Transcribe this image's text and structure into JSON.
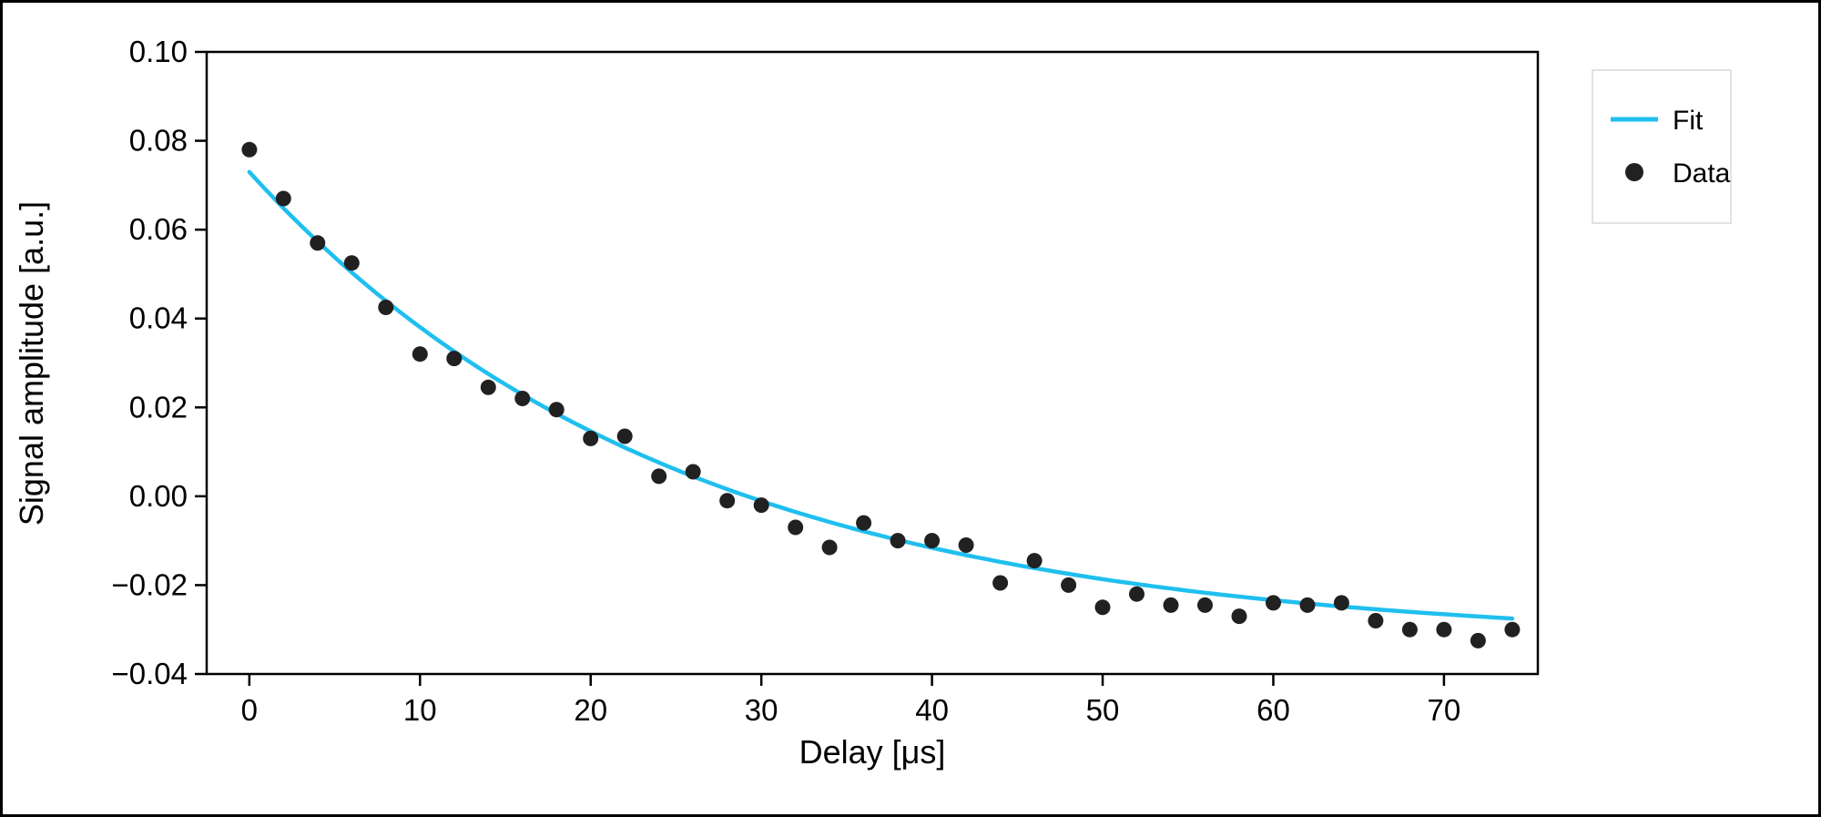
{
  "figure": {
    "xlabel": "Delay [μs]",
    "ylabel": "Signal amplitude [a.u.]"
  },
  "legend": {
    "fit_label": "Fit",
    "data_label": "Data"
  },
  "colors": {
    "fit_line": "#1fbfef",
    "data_points": "#212121",
    "axis": "#000000",
    "tick_text": "#000000",
    "legend_border": "#d9d9d9",
    "background": "#ffffff"
  },
  "chart_data": {
    "type": "scatter",
    "title": "",
    "xlabel": "Delay [μs]",
    "ylabel": "Signal amplitude [a.u.]",
    "xlim": [
      -2.5,
      75.5
    ],
    "ylim": [
      -0.04,
      0.1
    ],
    "grid": false,
    "legend_position": "outside-right-top",
    "xticks": [
      {
        "value": 0,
        "label": "0"
      },
      {
        "value": 10,
        "label": "10"
      },
      {
        "value": 20,
        "label": "20"
      },
      {
        "value": 30,
        "label": "30"
      },
      {
        "value": 40,
        "label": "40"
      },
      {
        "value": 50,
        "label": "50"
      },
      {
        "value": 60,
        "label": "60"
      },
      {
        "value": 70,
        "label": "70"
      }
    ],
    "yticks": [
      {
        "value": -0.04,
        "label": "−0.04"
      },
      {
        "value": -0.02,
        "label": "−0.02"
      },
      {
        "value": 0.0,
        "label": "0.00"
      },
      {
        "value": 0.02,
        "label": "0.02"
      },
      {
        "value": 0.04,
        "label": "0.04"
      },
      {
        "value": 0.06,
        "label": "0.06"
      },
      {
        "value": 0.08,
        "label": "0.08"
      },
      {
        "value": 0.1,
        "label": "0.10"
      }
    ],
    "series": [
      {
        "name": "Fit",
        "type": "line",
        "color": "#1fbfef",
        "model": "A * exp(-x/tau) + C",
        "fit": {
          "A": 0.106,
          "tau": 25.0,
          "C": -0.033,
          "x_start": 0,
          "x_end": 74
        }
      },
      {
        "name": "Data",
        "type": "scatter",
        "color": "#212121",
        "x": [
          0,
          2,
          4,
          6,
          8,
          10,
          12,
          14,
          16,
          18,
          20,
          22,
          24,
          26,
          28,
          30,
          32,
          34,
          36,
          38,
          40,
          42,
          44,
          46,
          48,
          50,
          52,
          54,
          56,
          58,
          60,
          62,
          64,
          66,
          68,
          70,
          72,
          74
        ],
        "y": [
          0.078,
          0.067,
          0.057,
          0.0525,
          0.0425,
          0.032,
          0.031,
          0.0245,
          0.022,
          0.0195,
          0.013,
          0.0135,
          0.0045,
          0.0055,
          -0.001,
          -0.002,
          -0.007,
          -0.0115,
          -0.006,
          -0.01,
          -0.01,
          -0.011,
          -0.0195,
          -0.0145,
          -0.02,
          -0.025,
          -0.022,
          -0.0245,
          -0.0245,
          -0.027,
          -0.024,
          -0.0245,
          -0.024,
          -0.028,
          -0.03,
          -0.03,
          -0.0325,
          -0.03
        ]
      }
    ]
  }
}
